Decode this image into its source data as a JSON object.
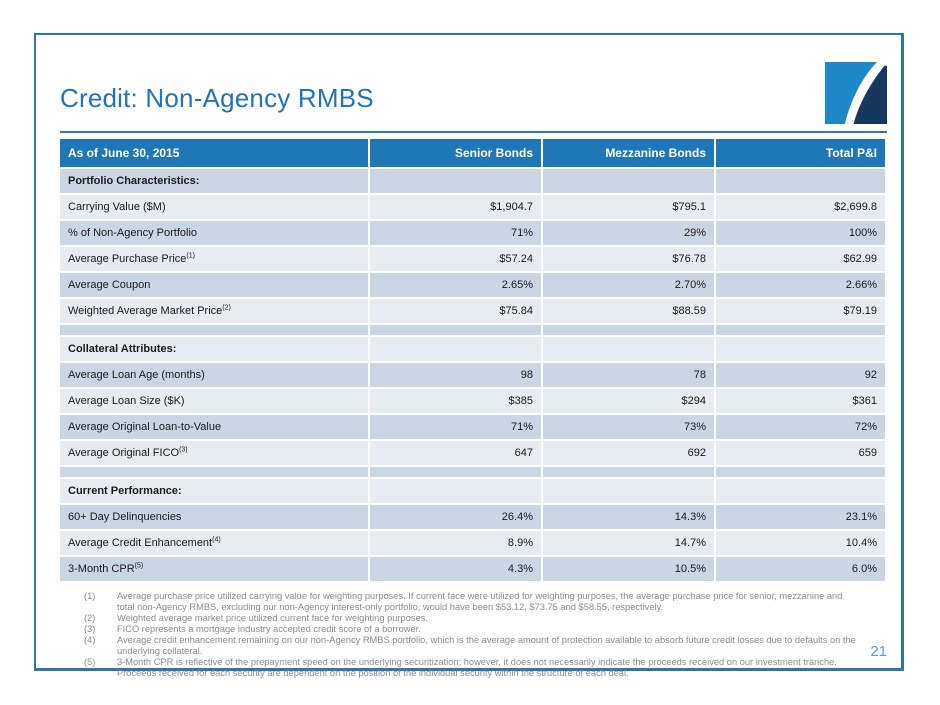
{
  "slide": {
    "title": "Credit: Non-Agency RMBS",
    "page_number": "21"
  },
  "colors": {
    "frame_border": "#2e75b6",
    "title_blue": "#1f74bc",
    "header_bg": "#1f77b5",
    "row_dark": "#cbd6e4",
    "row_light": "#e7ebf2",
    "footnote_gray": "#8c8c8c",
    "page_number_blue": "#5b9bd5",
    "logo_light_blue": "#1e87c8",
    "logo_dark_navy": "#17375e"
  },
  "table": {
    "header": [
      "As of June 30, 2015",
      "Senior Bonds",
      "Mezzanine Bonds",
      "Total P&I"
    ],
    "rows": [
      {
        "type": "section",
        "label": "Portfolio Characteristics:"
      },
      {
        "type": "data",
        "label": "Carrying Value ($M)",
        "values": [
          "$1,904.7",
          "$795.1",
          "$2,699.8"
        ]
      },
      {
        "type": "data",
        "label": "% of Non-Agency Portfolio",
        "values": [
          "71%",
          "29%",
          "100%"
        ]
      },
      {
        "type": "data",
        "label": "Average Purchase Price",
        "sup": "(1)",
        "values": [
          "$57.24",
          "$76.78",
          "$62.99"
        ]
      },
      {
        "type": "data",
        "label": "Average Coupon",
        "values": [
          "2.65%",
          "2.70%",
          "2.66%"
        ]
      },
      {
        "type": "data",
        "label": "Weighted Average Market Price",
        "sup": "(2)",
        "values": [
          "$75.84",
          "$88.59",
          "$79.19"
        ]
      },
      {
        "type": "spacer"
      },
      {
        "type": "section",
        "label": "Collateral Attributes:"
      },
      {
        "type": "data",
        "label": "Average Loan Age (months)",
        "values": [
          "98",
          "78",
          "92"
        ]
      },
      {
        "type": "data",
        "label": "Average Loan Size ($K)",
        "values": [
          "$385",
          "$294",
          "$361"
        ]
      },
      {
        "type": "data",
        "label": "Average Original Loan-to-Value",
        "values": [
          "71%",
          "73%",
          "72%"
        ]
      },
      {
        "type": "data",
        "label": "Average Original FICO",
        "sup": "(3)",
        "values": [
          "647",
          "692",
          "659"
        ]
      },
      {
        "type": "spacer"
      },
      {
        "type": "section",
        "label": "Current Performance:"
      },
      {
        "type": "data",
        "label": "60+ Day Delinquencies",
        "values": [
          "26.4%",
          "14.3%",
          "23.1%"
        ]
      },
      {
        "type": "data",
        "label": "Average Credit Enhancement",
        "sup": "(4)",
        "values": [
          "8.9%",
          "14.7%",
          "10.4%"
        ]
      },
      {
        "type": "data",
        "label": "3-Month CPR",
        "sup": "(5)",
        "values": [
          "4.3%",
          "10.5%",
          "6.0%"
        ]
      }
    ]
  },
  "footnotes": [
    {
      "num": "(1)",
      "text": "Average purchase price utilized carrying value for weighting purposes. If current face were utilized for weighting purposes, the average purchase price for senior, mezzanine and total non-Agency RMBS, excluding our non-Agency interest-only portfolio, would have been $53.12, $73.75 and $58.55, respectively."
    },
    {
      "num": "(2)",
      "text": "Weighted average market price utilized current face for weighting purposes."
    },
    {
      "num": "(3)",
      "text": "FICO represents a mortgage industry accepted credit score of a borrower."
    },
    {
      "num": "(4)",
      "text": "Average credit enhancement remaining on our non-Agency RMBS portfolio, which is the average amount of protection available to absorb future credit losses due to defaults on the underlying collateral."
    },
    {
      "num": "(5)",
      "text": "3-Month CPR is reflective of the prepayment speed on the underlying securitization; however, it does not necessarily indicate the proceeds received on our investment tranche. Proceeds received for each security are dependent on the position of the individual security within the structure of each deal."
    }
  ]
}
